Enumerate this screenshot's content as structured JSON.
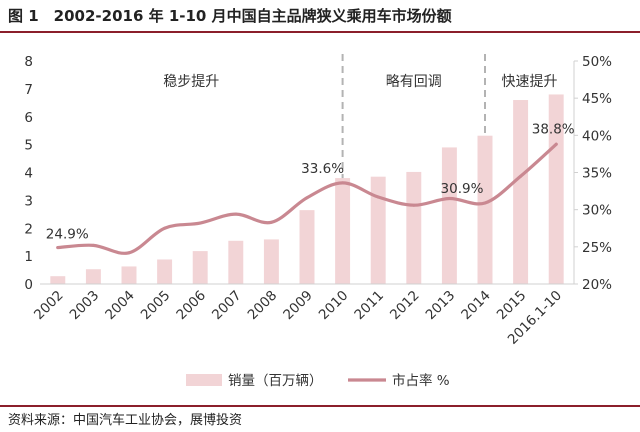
{
  "figure_title": "图 1　2002-2016 年 1-10 月中国自主品牌狭义乘用车市场份额",
  "source": "资料来源：中国汽车工业协会，展博投资",
  "colors": {
    "bar": "#f2d4d6",
    "line": "#c98891",
    "rule": "#8b1f2b",
    "divider": "#b3b3b3"
  },
  "chart_data": {
    "type": "bar",
    "categories": [
      "2002",
      "2003",
      "2004",
      "2005",
      "2006",
      "2007",
      "2008",
      "2009",
      "2010",
      "2011",
      "2012",
      "2013",
      "2014",
      "2015",
      "2016.1-10"
    ],
    "series": [
      {
        "name": "销量（百万辆）",
        "type": "bar",
        "axis": "left",
        "values": [
          0.28,
          0.53,
          0.63,
          0.88,
          1.18,
          1.55,
          1.6,
          2.65,
          3.8,
          3.85,
          4.02,
          4.9,
          5.32,
          6.6,
          6.8
        ]
      },
      {
        "name": "市占率 %",
        "type": "line",
        "axis": "right",
        "values": [
          24.9,
          25.2,
          24.2,
          27.5,
          28.2,
          29.4,
          28.3,
          31.6,
          33.6,
          31.7,
          30.6,
          31.5,
          30.9,
          34.5,
          38.8
        ]
      }
    ],
    "data_labels": [
      {
        "index": 0,
        "text": "24.9%"
      },
      {
        "index": 8,
        "text": "33.6%"
      },
      {
        "index": 12,
        "text": "30.9%"
      },
      {
        "index": 14,
        "text": "38.8%"
      }
    ],
    "phases": [
      {
        "label": "稳步提升",
        "from": 0,
        "to": 8
      },
      {
        "label": "略有回调",
        "from": 8,
        "to": 12
      },
      {
        "label": "快速提升",
        "from": 12,
        "to": 14
      }
    ],
    "y_left": {
      "min": 0,
      "max": 8,
      "ticks": [
        0,
        1,
        2,
        3,
        4,
        5,
        6,
        7,
        8
      ]
    },
    "y_right": {
      "min": 20,
      "max": 50,
      "ticks": [
        "20%",
        "25%",
        "30%",
        "35%",
        "40%",
        "45%",
        "50%"
      ]
    },
    "legend_position": "bottom",
    "grid": false
  }
}
